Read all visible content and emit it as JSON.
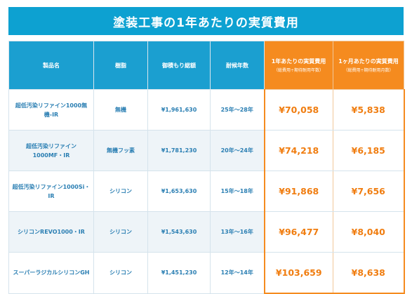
{
  "title": "塗装工事の1年あたりの実質費用",
  "headers": {
    "product": "製品名",
    "resin": "樹脂",
    "estimate": "御積もり総額",
    "years": "耐候年数",
    "per_year_main": "1年あたりの実質費用",
    "per_year_sub": "（総費用÷期待耐用年数）",
    "per_month_main": "1ヶ月あたりの実質費用",
    "per_month_sub": "（総費用÷期待耐用月数）"
  },
  "rows": [
    {
      "product": "超低汚染リファイン1000無機-IR",
      "resin": "無機",
      "estimate": "¥1,961,630",
      "years": "25年〜28年",
      "per_year": "¥70,058",
      "per_month": "¥5,838"
    },
    {
      "product": "超低汚染リファイン1000MF・IR",
      "resin": "無機フッ素",
      "estimate": "¥1,781,230",
      "years": "20年〜24年",
      "per_year": "¥74,218",
      "per_month": "¥6,185"
    },
    {
      "product": "超低汚染リファイン1000Si・IR",
      "resin": "シリコン",
      "estimate": "¥1,653,630",
      "years": "15年〜18年",
      "per_year": "¥91,868",
      "per_month": "¥7,656"
    },
    {
      "product": "シリコンREVO1000・IR",
      "resin": "シリコン",
      "estimate": "¥1,543,630",
      "years": "13年〜16年",
      "per_year": "¥96,477",
      "per_month": "¥8,040"
    },
    {
      "product": "スーパーラジカルシリコンGH",
      "resin": "シリコン",
      "estimate": "¥1,451,230",
      "years": "12年〜14年",
      "per_year": "¥103,659",
      "per_month": "¥8,638"
    }
  ],
  "colors": {
    "header_blue": "#1b9fd0",
    "title_blue": "#0da1d1",
    "accent_orange": "#f58b1f",
    "price_orange": "#f07d10",
    "text_blue": "#2b7fb3"
  }
}
